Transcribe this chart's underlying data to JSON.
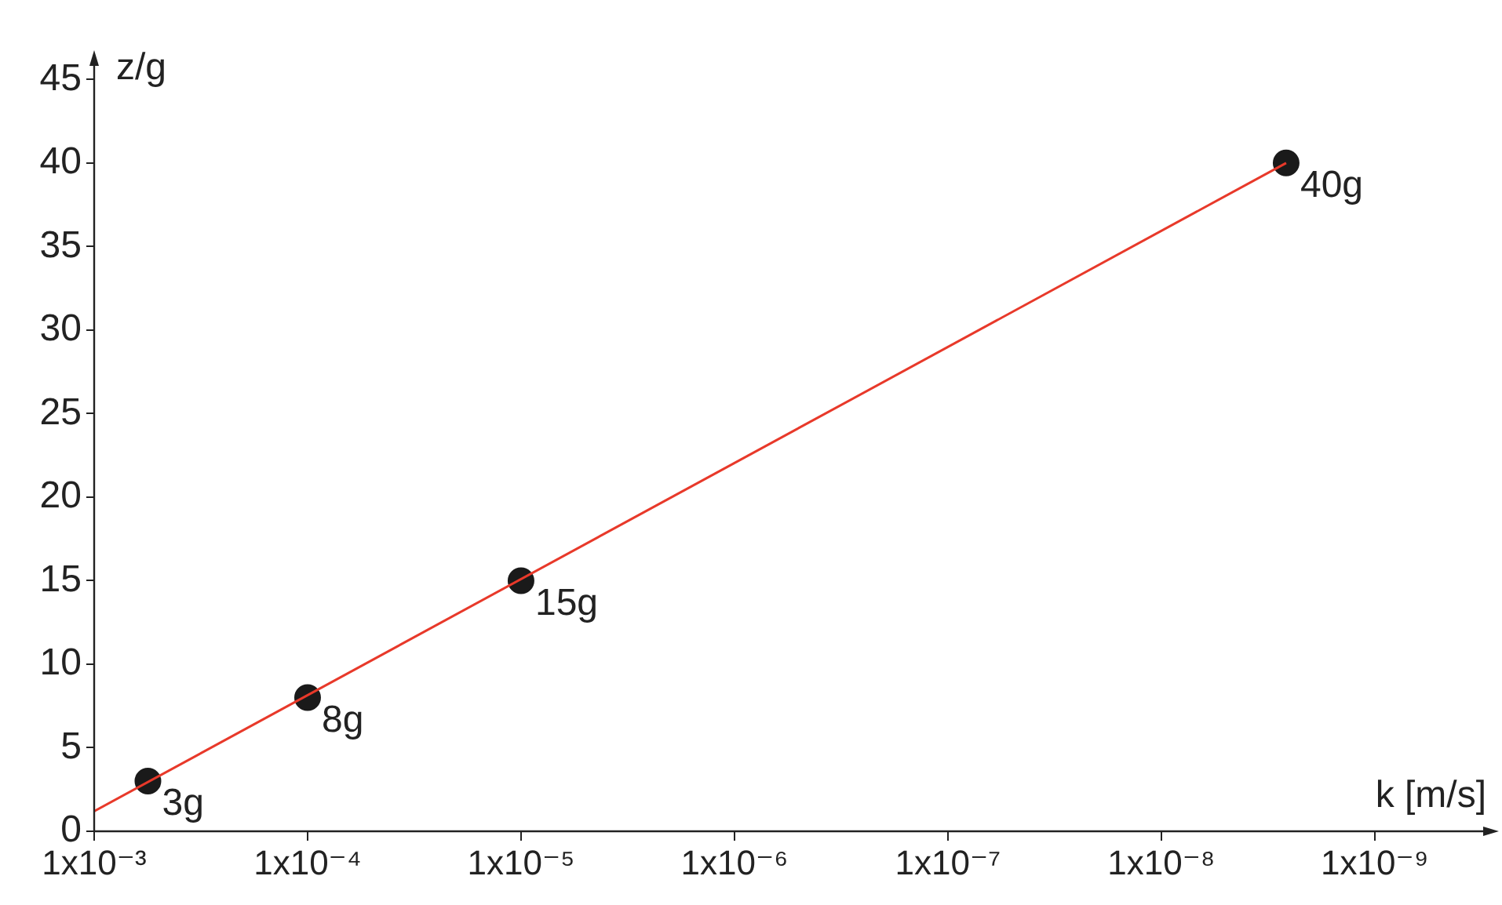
{
  "chart_data": {
    "type": "scatter",
    "xlabel": "k [m/s]",
    "ylabel": "z/g",
    "log": "x",
    "xlim": [
      0.001,
      3e-10
    ],
    "xticks": [
      {
        "value": 0.001,
        "label": "1x10⁻³"
      },
      {
        "value": 0.0001,
        "label": "1x10⁻⁴"
      },
      {
        "value": 1e-05,
        "label": "1x10⁻⁵"
      },
      {
        "value": 1e-06,
        "label": "1x10⁻⁶"
      },
      {
        "value": 1e-07,
        "label": "1x10⁻⁷"
      },
      {
        "value": 1e-08,
        "label": "1x10⁻⁸"
      },
      {
        "value": 1e-09,
        "label": "1x10⁻⁹"
      }
    ],
    "ylim": [
      0,
      46
    ],
    "yticks": [
      0,
      5,
      10,
      15,
      20,
      25,
      30,
      35,
      40,
      45
    ],
    "grid": false,
    "legend": false,
    "series": [
      {
        "type": "line",
        "marker": "none",
        "color": "#e8392a",
        "x": [
          0.001,
          2.6e-09
        ],
        "values": [
          1.2,
          40
        ]
      },
      {
        "marker": "circle",
        "color": "#1a1a1a",
        "x": [
          0.00056,
          0.0001,
          1e-05,
          2.6e-09
        ],
        "values": [
          3,
          8,
          15,
          40
        ],
        "value_labels": [
          "3g",
          "8g",
          "15g",
          "40g"
        ]
      }
    ]
  }
}
